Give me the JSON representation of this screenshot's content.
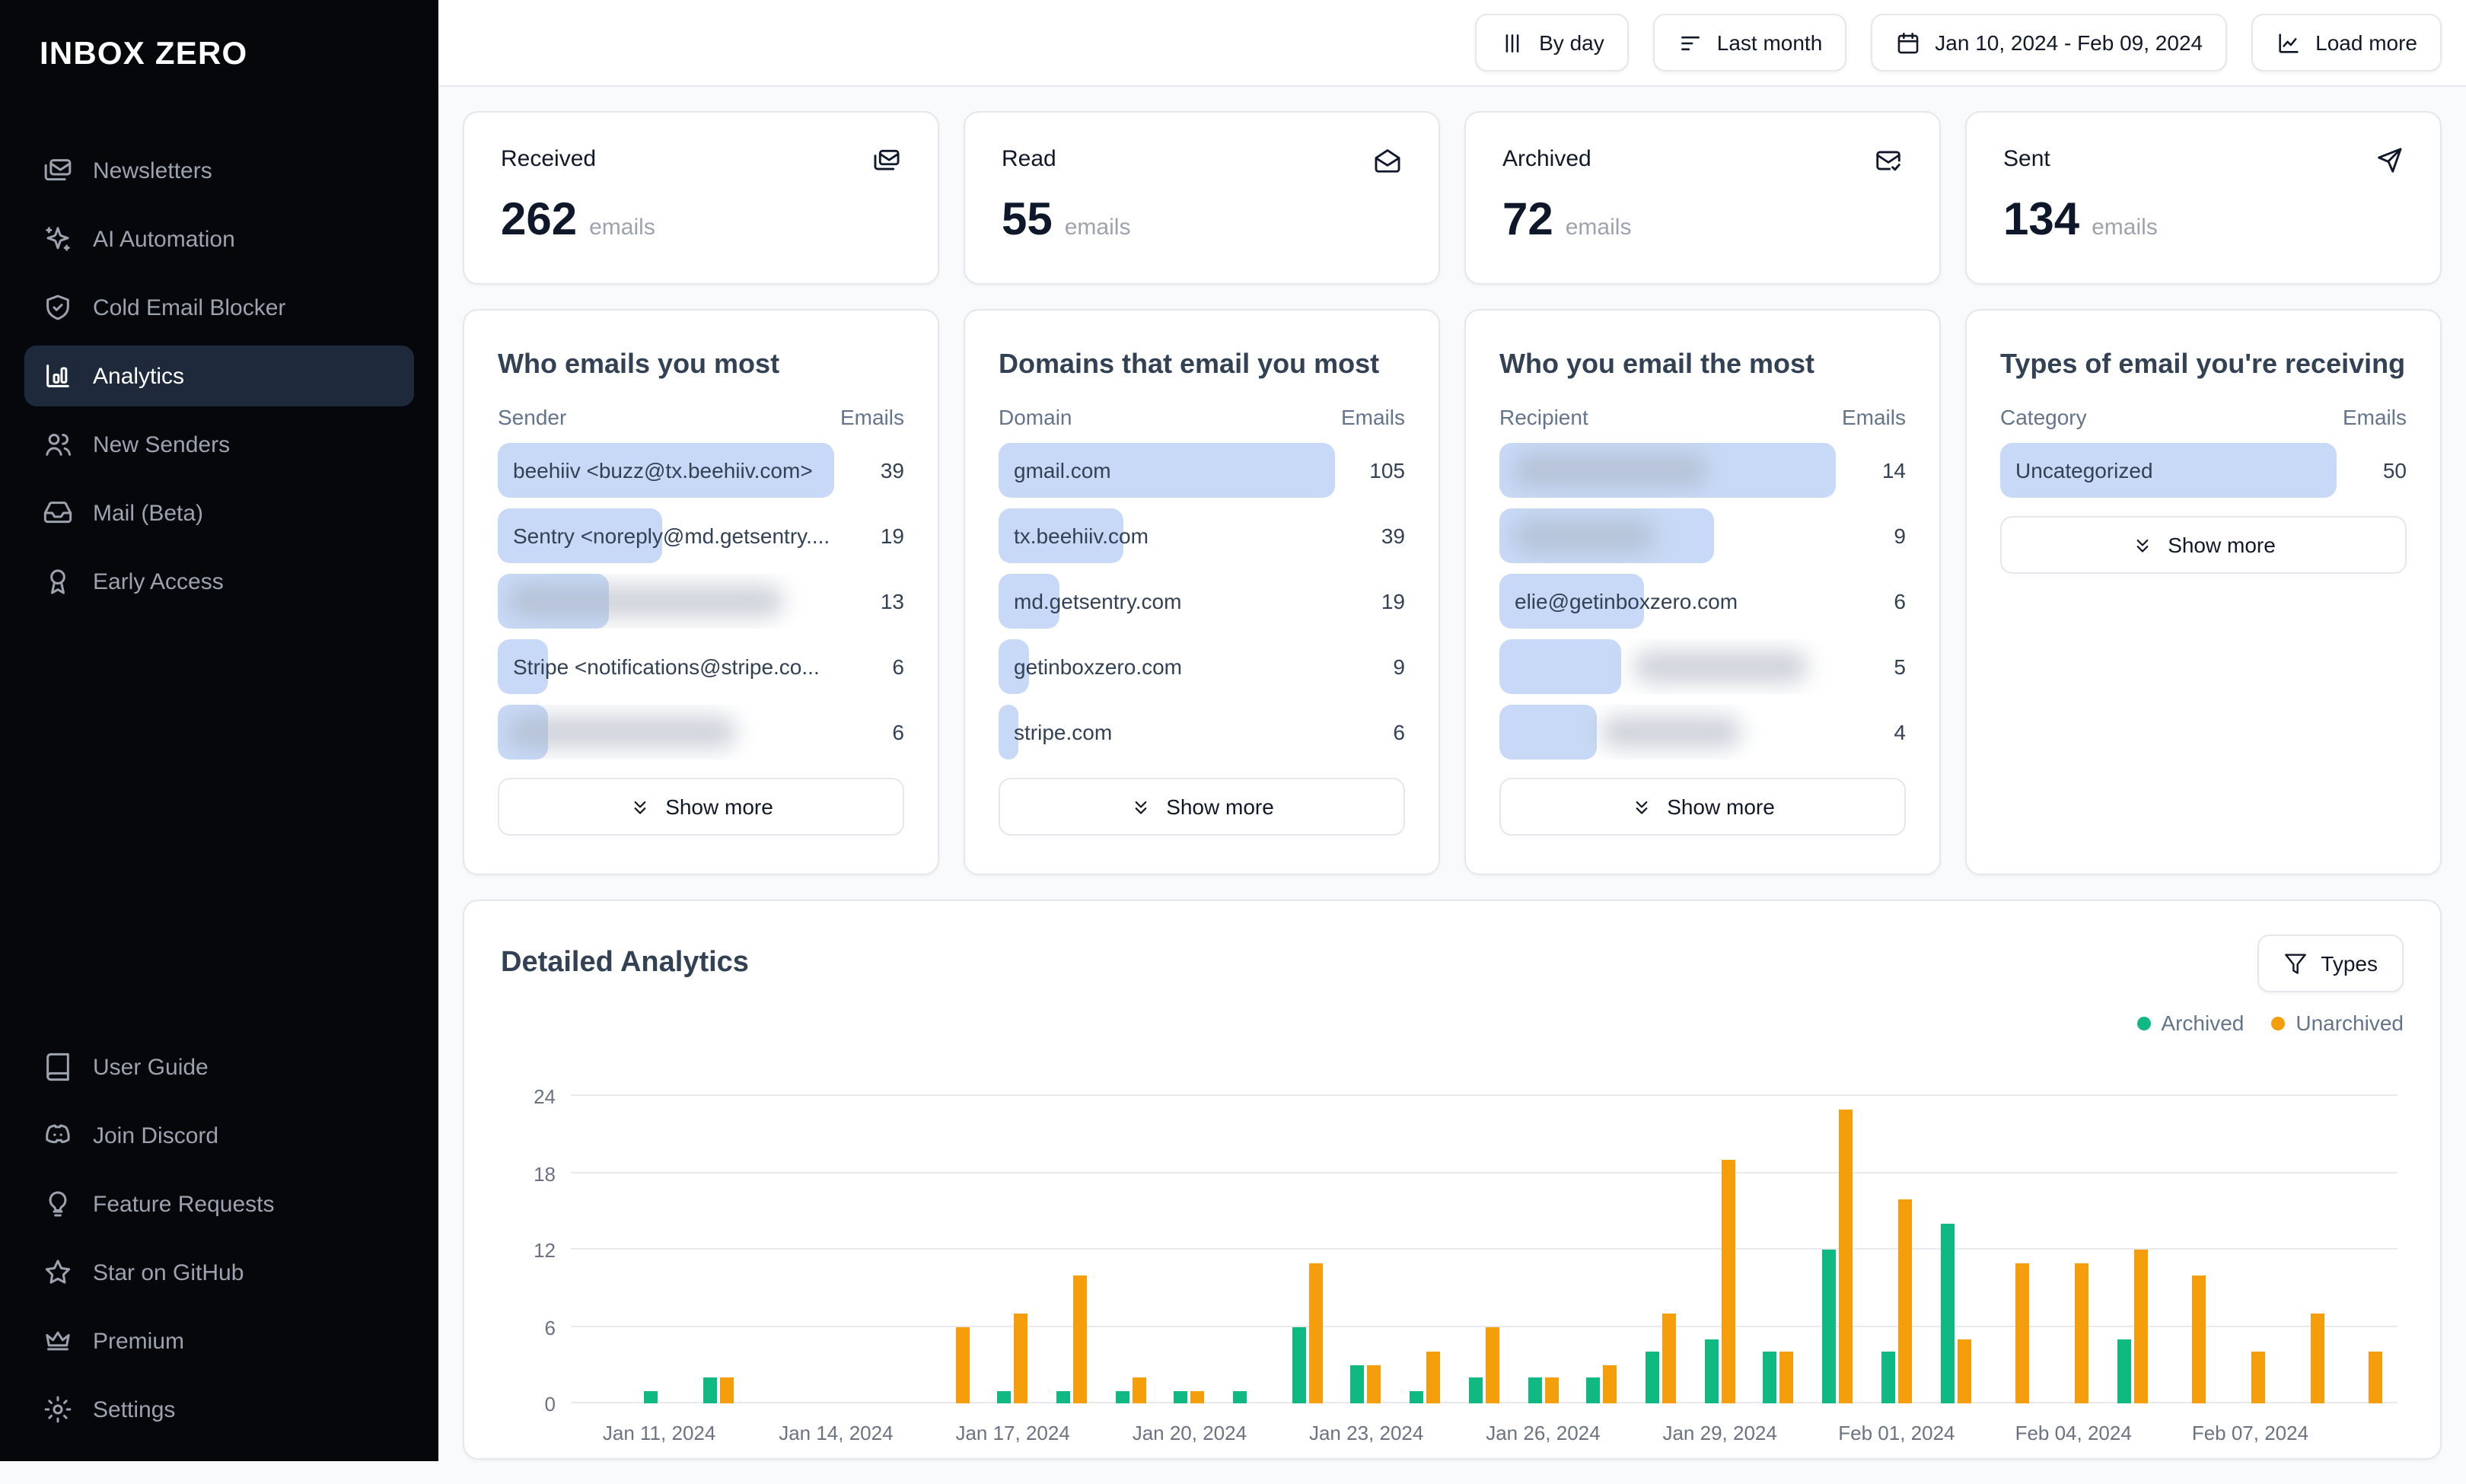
{
  "app": {
    "logo": "INBOX ZERO"
  },
  "colors": {
    "row_bar": "#c7d9f6",
    "archived": "#10b981",
    "unarchived": "#f59e0b"
  },
  "sidebar": {
    "items": [
      {
        "label": "Newsletters",
        "icon": "mails",
        "active": false
      },
      {
        "label": "AI Automation",
        "icon": "sparkles",
        "active": false
      },
      {
        "label": "Cold Email Blocker",
        "icon": "shield-check",
        "active": false
      },
      {
        "label": "Analytics",
        "icon": "bar-chart",
        "active": true
      },
      {
        "label": "New Senders",
        "icon": "users",
        "active": false
      },
      {
        "label": "Mail (Beta)",
        "icon": "inbox",
        "active": false
      },
      {
        "label": "Early Access",
        "icon": "award",
        "active": false
      }
    ],
    "footer_items": [
      {
        "label": "User Guide",
        "icon": "book"
      },
      {
        "label": "Join Discord",
        "icon": "discord"
      },
      {
        "label": "Feature Requests",
        "icon": "lightbulb"
      },
      {
        "label": "Star on GitHub",
        "icon": "star"
      },
      {
        "label": "Premium",
        "icon": "crown"
      },
      {
        "label": "Settings",
        "icon": "settings"
      }
    ]
  },
  "topbar": {
    "buttons": [
      {
        "label": "By day",
        "icon": "columns"
      },
      {
        "label": "Last month",
        "icon": "filter-lines"
      },
      {
        "label": "Jan 10, 2024 - Feb 09, 2024",
        "icon": "calendar"
      },
      {
        "label": "Load more",
        "icon": "chart-line"
      }
    ]
  },
  "stats": [
    {
      "label": "Received",
      "value": "262",
      "unit": "emails",
      "icon": "mails"
    },
    {
      "label": "Read",
      "value": "55",
      "unit": "emails",
      "icon": "mail-open"
    },
    {
      "label": "Archived",
      "value": "72",
      "unit": "emails",
      "icon": "mail-check"
    },
    {
      "label": "Sent",
      "value": "134",
      "unit": "emails",
      "icon": "send"
    }
  ],
  "panels": [
    {
      "title": "Who emails you most",
      "col_label": "Sender",
      "col_value": "Emails",
      "show_more": "Show more",
      "rows": [
        {
          "label": "beehiiv <buzz@tx.beehiiv.com>",
          "value": 39,
          "bar_pct": 100,
          "blurred": false
        },
        {
          "label": "Sentry <noreply@md.getsentry....",
          "value": 19,
          "bar_pct": 49,
          "blurred": false
        },
        {
          "label": "",
          "value": 13,
          "bar_pct": 33,
          "blurred": true,
          "blur_left_pct": 3,
          "blur_width_pct": 82
        },
        {
          "label": "Stripe <notifications@stripe.co...",
          "value": 6,
          "bar_pct": 15,
          "blurred": false
        },
        {
          "label": "",
          "value": 6,
          "bar_pct": 15,
          "blurred": true,
          "blur_left_pct": 3,
          "blur_width_pct": 68
        }
      ]
    },
    {
      "title": "Domains that email you most",
      "col_label": "Domain",
      "col_value": "Emails",
      "show_more": "Show more",
      "rows": [
        {
          "label": "gmail.com",
          "value": 105,
          "bar_pct": 100,
          "blurred": false
        },
        {
          "label": "tx.beehiiv.com",
          "value": 39,
          "bar_pct": 37,
          "blurred": false
        },
        {
          "label": "md.getsentry.com",
          "value": 19,
          "bar_pct": 18,
          "blurred": false
        },
        {
          "label": "getinboxzero.com",
          "value": 9,
          "bar_pct": 9,
          "blurred": false
        },
        {
          "label": "stripe.com",
          "value": 6,
          "bar_pct": 6,
          "blurred": false
        }
      ]
    },
    {
      "title": "Who you email the most",
      "col_label": "Recipient",
      "col_value": "Emails",
      "show_more": "Show more",
      "rows": [
        {
          "label": "",
          "value": 14,
          "bar_pct": 100,
          "blurred": true,
          "blur_left_pct": 4,
          "blur_width_pct": 58
        },
        {
          "label": "",
          "value": 9,
          "bar_pct": 64,
          "blurred": true,
          "blur_left_pct": 4,
          "blur_width_pct": 42
        },
        {
          "label": "elie@getinboxzero.com",
          "value": 6,
          "bar_pct": 43,
          "blurred": false
        },
        {
          "label": "",
          "value": 5,
          "bar_pct": 36,
          "blurred": true,
          "blur_left_pct": 40,
          "blur_width_pct": 52
        },
        {
          "label": "",
          "value": 4,
          "bar_pct": 29,
          "blurred": true,
          "blur_left_pct": 30,
          "blur_width_pct": 42
        }
      ]
    },
    {
      "title": "Types of email you're receiving",
      "col_label": "Category",
      "col_value": "Emails",
      "show_more": "Show more",
      "rows": [
        {
          "label": "Uncategorized",
          "value": 50,
          "bar_pct": 100,
          "blurred": false
        }
      ]
    }
  ],
  "detailed": {
    "title": "Detailed Analytics",
    "types_button": "Types",
    "legend": [
      {
        "label": "Archived",
        "color": "#10b981"
      },
      {
        "label": "Unarchived",
        "color": "#f59e0b"
      }
    ]
  },
  "chart_data": {
    "type": "bar",
    "title": "Detailed Analytics",
    "xlabel": "",
    "ylabel": "",
    "ylim": [
      0,
      24
    ],
    "y_ticks": [
      0,
      6,
      12,
      18,
      24
    ],
    "grid": true,
    "legend_position": "top-right",
    "dates": [
      "Jan 10, 2024",
      "Jan 11, 2024",
      "Jan 12, 2024",
      "Jan 13, 2024",
      "Jan 14, 2024",
      "Jan 15, 2024",
      "Jan 16, 2024",
      "Jan 17, 2024",
      "Jan 18, 2024",
      "Jan 19, 2024",
      "Jan 20, 2024",
      "Jan 21, 2024",
      "Jan 22, 2024",
      "Jan 23, 2024",
      "Jan 24, 2024",
      "Jan 25, 2024",
      "Jan 26, 2024",
      "Jan 27, 2024",
      "Jan 28, 2024",
      "Jan 29, 2024",
      "Jan 30, 2024",
      "Jan 31, 2024",
      "Feb 01, 2024",
      "Feb 02, 2024",
      "Feb 03, 2024",
      "Feb 04, 2024",
      "Feb 05, 2024",
      "Feb 06, 2024",
      "Feb 07, 2024",
      "Feb 08, 2024",
      "Feb 09, 2024"
    ],
    "series": [
      {
        "name": "Archived",
        "color": "#10b981",
        "values": [
          0,
          1,
          2,
          0,
          0,
          0,
          0,
          1,
          1,
          1,
          1,
          1,
          6,
          3,
          1,
          2,
          2,
          2,
          4,
          5,
          4,
          12,
          4,
          14,
          0,
          0,
          5,
          0,
          0,
          0,
          0
        ]
      },
      {
        "name": "Unarchived",
        "color": "#f59e0b",
        "values": [
          0,
          0,
          2,
          0,
          0,
          0,
          6,
          7,
          10,
          2,
          1,
          0,
          11,
          3,
          4,
          6,
          2,
          3,
          7,
          19,
          4,
          23,
          16,
          5,
          11,
          11,
          12,
          10,
          4,
          7,
          4
        ]
      }
    ],
    "x_ticks": [
      {
        "index": 1,
        "label": "Jan 11, 2024"
      },
      {
        "index": 4,
        "label": "Jan 14, 2024"
      },
      {
        "index": 7,
        "label": "Jan 17, 2024"
      },
      {
        "index": 10,
        "label": "Jan 20, 2024"
      },
      {
        "index": 13,
        "label": "Jan 23, 2024"
      },
      {
        "index": 16,
        "label": "Jan 26, 2024"
      },
      {
        "index": 19,
        "label": "Jan 29, 2024"
      },
      {
        "index": 22,
        "label": "Feb 01, 2024"
      },
      {
        "index": 25,
        "label": "Feb 04, 2024"
      },
      {
        "index": 28,
        "label": "Feb 07, 2024"
      }
    ]
  }
}
